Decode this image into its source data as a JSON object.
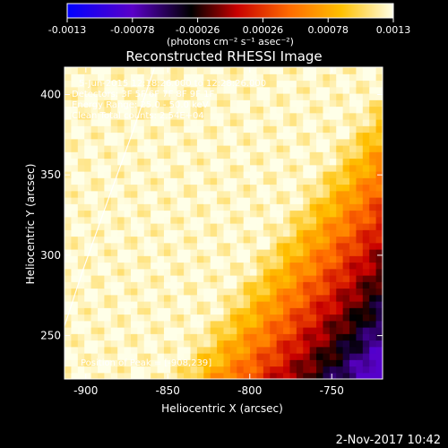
{
  "chart_data": {
    "type": "heatmap",
    "title": "Reconstructed RHESSI Image",
    "xlabel": "Heliocentric X (arcsec)",
    "ylabel": "Heliocentric Y (arcsec)",
    "xlim": [
      -913,
      -719
    ],
    "ylim": [
      223,
      417
    ],
    "x_ticks": [
      -900,
      -850,
      -800,
      -750
    ],
    "x_tick_labels": [
      "-900",
      "-850",
      "-800",
      "-750"
    ],
    "y_ticks": [
      250,
      300,
      350,
      400
    ],
    "y_tick_labels": [
      "250",
      "300",
      "350",
      "400"
    ],
    "colorbar": {
      "min": -0.0013,
      "max": 0.0013,
      "ticks": [
        -0.0013,
        -0.00078,
        -0.00026,
        0.00026,
        0.00078,
        0.0013
      ],
      "tick_labels": [
        "-0.0013",
        "-0.00078",
        "-0.00026",
        "0.00026",
        "0.00078",
        "0.0013"
      ],
      "unit_label": "(photons cm⁻² s⁻¹ asec⁻²)",
      "colors": [
        "#0000ff",
        "#5a00c8",
        "#000000",
        "#c80000",
        "#ff6a00",
        "#ffc000",
        "#ffffe8"
      ]
    },
    "annotations": [
      "5-Jun-2015 12:18:26.000 to 12:28:26.000",
      "Detectors: 3F 5F 6F 7F 8F 9F 1F",
      "Energy Range: 25.0 - 50.0 keV",
      "Clean     Total counts: 2.54E+04"
    ],
    "peak_label": "Position of Peak = [-908,239]",
    "peak": [
      -908,
      239
    ],
    "limb_curve": [
      [
        -913,
        256
      ],
      [
        -902,
        290
      ],
      [
        -888,
        330
      ],
      [
        -872,
        375
      ],
      [
        -858,
        417
      ]
    ]
  },
  "footer": {
    "timestamp": "2-Nov-2017 10:42"
  }
}
